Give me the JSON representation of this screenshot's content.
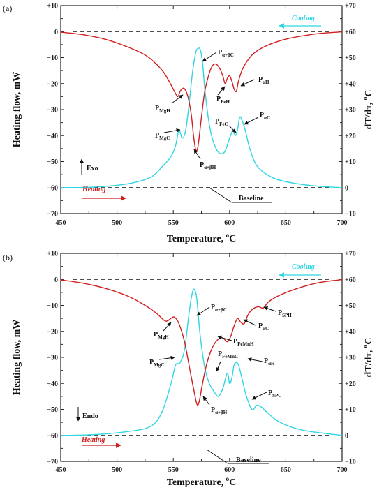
{
  "colors": {
    "heating": "#d01f1f",
    "cooling": "#2fd6e3",
    "axis": "#222222"
  },
  "chart_data": [
    {
      "type": "line",
      "panel_label": "(a)",
      "xlabel": "Temperature, ",
      "xlabel_sup": "o",
      "xlabel_unit": "C",
      "ylabel": "Heating flow, mW",
      "y2label": "dT/dτ, ",
      "y2label_sup": "o",
      "y2label_unit": "C",
      "xlim": [
        450,
        700
      ],
      "ylim": [
        -70,
        10
      ],
      "y2lim": [
        -10,
        70
      ],
      "xticks": [
        "450",
        "500",
        "550",
        "600",
        "650",
        "700"
      ],
      "yticks": [
        "+10",
        "0",
        "−10",
        "−20",
        "−30",
        "−40",
        "−50",
        "−60",
        "−70"
      ],
      "y2ticks": [
        "+70",
        "+60",
        "+50",
        "+40",
        "+30",
        "+20",
        "+10",
        "0",
        "−10"
      ],
      "legend_heating": "Heating",
      "legend_cooling": "Cooling",
      "baseline_label": "Baseline",
      "direction_label": "Exo",
      "direction": "up",
      "series": [
        {
          "name": "Heating",
          "x": [
            450,
            470,
            490,
            510,
            525,
            535,
            542,
            548,
            551,
            554,
            556,
            558,
            560,
            563,
            566,
            568,
            570,
            572,
            575,
            578,
            582,
            585,
            588,
            591,
            594,
            596,
            598,
            600,
            602,
            604,
            606,
            608,
            612,
            620,
            630,
            645,
            660,
            680,
            700
          ],
          "y": [
            -0.2,
            -1.2,
            -3,
            -6,
            -9,
            -12.5,
            -16,
            -20.5,
            -23,
            -25,
            -23,
            -22,
            -22,
            -25,
            -32,
            -40,
            -45.5,
            -44,
            -33,
            -23,
            -16,
            -13,
            -12.5,
            -14,
            -17,
            -20,
            -18,
            -17,
            -19,
            -22,
            -23,
            -19,
            -14,
            -9,
            -6,
            -3.5,
            -2,
            -0.7,
            -0.1
          ]
        },
        {
          "name": "Cooling",
          "x": [
            450,
            480,
            510,
            530,
            540,
            548,
            552,
            555,
            558,
            561,
            564,
            567,
            570,
            572,
            574,
            576,
            578,
            581,
            584,
            588,
            592,
            596,
            600,
            603,
            605,
            607,
            609,
            611,
            614,
            618,
            625,
            640,
            660,
            680,
            700
          ],
          "y": [
            -60,
            -59.8,
            -58.5,
            -56,
            -52,
            -48,
            -44,
            -38,
            -41,
            -38,
            -28,
            -16,
            -8,
            -6.5,
            -7,
            -12,
            -22,
            -33,
            -40,
            -45,
            -47,
            -46,
            -41,
            -38,
            -40,
            -38,
            -33,
            -34,
            -38,
            -45,
            -52,
            -56.5,
            -58.5,
            -59.5,
            -60
          ]
        }
      ],
      "annotations": [
        {
          "main": "P",
          "sub": "MgH"
        },
        {
          "main": "P",
          "sub": "MgC"
        },
        {
          "main": "P",
          "sub": "α+βC"
        },
        {
          "main": "P",
          "sub": "α+βH"
        },
        {
          "main": "P",
          "sub": "FeH"
        },
        {
          "main": "P",
          "sub": "FeC"
        },
        {
          "main": "P",
          "sub": "αH"
        },
        {
          "main": "P",
          "sub": "αC"
        }
      ]
    },
    {
      "type": "line",
      "panel_label": "(b)",
      "xlabel": "Temperature, ",
      "xlabel_sup": "o",
      "xlabel_unit": "C",
      "ylabel": "Heating flow, mW",
      "y2label": "dT/dτ, ",
      "y2label_sup": "o",
      "y2label_unit": "C",
      "xlim": [
        450,
        700
      ],
      "ylim": [
        -70,
        10
      ],
      "y2lim": [
        -10,
        70
      ],
      "xticks": [
        "450",
        "500",
        "550",
        "600",
        "650",
        "700"
      ],
      "yticks": [
        "+10",
        "0",
        "−10",
        "−20",
        "−30",
        "−40",
        "−50",
        "−60",
        "−70"
      ],
      "y2ticks": [
        "+70",
        "+60",
        "+50",
        "+40",
        "+30",
        "+20",
        "+10",
        "0",
        "−10"
      ],
      "legend_heating": "Heating",
      "legend_cooling": "Cooling",
      "baseline_label": "Baseline",
      "direction_label": "Endo",
      "direction": "down",
      "series": [
        {
          "name": "Heating",
          "x": [
            450,
            470,
            490,
            510,
            525,
            535,
            543,
            548,
            551,
            555,
            560,
            564,
            568,
            571,
            573,
            576,
            580,
            585,
            590,
            594,
            598,
            601,
            604,
            607,
            610,
            613,
            616,
            619,
            622,
            626,
            630,
            635,
            645,
            660,
            680,
            700
          ],
          "y": [
            -0.2,
            -1.5,
            -3.5,
            -6.5,
            -10,
            -13,
            -16,
            -15,
            -14.5,
            -17,
            -24,
            -33,
            -42,
            -48,
            -47,
            -40,
            -32,
            -26,
            -23,
            -22.5,
            -24,
            -22,
            -18,
            -15,
            -16.5,
            -17,
            -14,
            -12,
            -11,
            -10.5,
            -11,
            -8.5,
            -6,
            -3.5,
            -1.2,
            -0.1
          ]
        },
        {
          "name": "Cooling",
          "x": [
            450,
            480,
            510,
            530,
            540,
            548,
            552,
            556,
            560,
            564,
            567,
            569,
            571,
            574,
            578,
            582,
            586,
            590,
            594,
            598,
            600,
            602,
            604,
            606,
            608,
            611,
            615,
            620,
            624,
            628,
            633,
            645,
            665,
            700
          ],
          "y": [
            -60,
            -59.7,
            -58.5,
            -56.5,
            -51,
            -40,
            -33,
            -32,
            -27,
            -13,
            -5,
            -4,
            -8,
            -22,
            -34,
            -40,
            -43,
            -45,
            -42,
            -36,
            -40,
            -38,
            -33,
            -32,
            -33,
            -38,
            -45,
            -50,
            -48.5,
            -49,
            -51,
            -55,
            -58,
            -60
          ]
        }
      ],
      "annotations": [
        {
          "main": "P",
          "sub": "MgH"
        },
        {
          "main": "P",
          "sub": "MgC"
        },
        {
          "main": "P",
          "sub": "α+βC"
        },
        {
          "main": "P",
          "sub": "α+βH"
        },
        {
          "main": "P",
          "sub": "FeMnH"
        },
        {
          "main": "P",
          "sub": "FeMnC"
        },
        {
          "main": "P",
          "sub": "αH"
        },
        {
          "main": "P",
          "sub": "αC"
        },
        {
          "main": "P",
          "sub": "SPH"
        },
        {
          "main": "P",
          "sub": "SPC"
        }
      ]
    }
  ]
}
